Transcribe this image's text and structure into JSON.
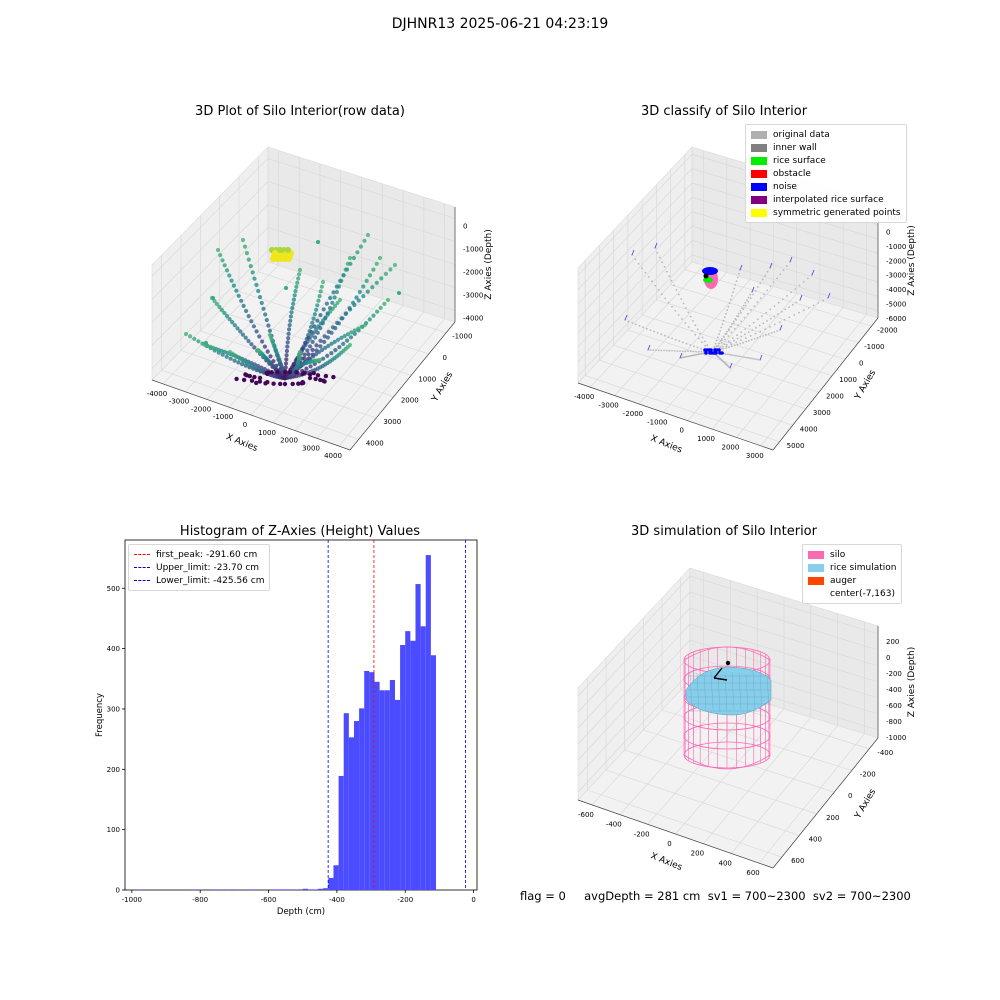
{
  "figure": {
    "suptitle": "DJHNR13 2025-06-21 04:23:19",
    "footer": "flag = 0     avgDepth = 281 cm  sv1 = 700~2300  sv2 = 700~2300"
  },
  "chart_data": [
    {
      "type": "scatter3d",
      "title": "3D Plot of Silo Interior(row data)",
      "xlabel": "X Axies",
      "ylabel": "Y Axies",
      "zlabel": "Z Axies (Depth)",
      "xticks": [
        "-4000",
        "-3000",
        "-2000",
        "-1000",
        "0",
        "1000",
        "2000",
        "3000",
        "4000"
      ],
      "yticks": [
        "-1000",
        "0",
        "1000",
        "2000",
        "3000",
        "4000"
      ],
      "zticks": [
        "-4000",
        "-3000",
        "-2000",
        "-1000",
        "0"
      ],
      "xlim": [
        -4200,
        4200
      ],
      "ylim": [
        -1200,
        4300
      ],
      "zlim": [
        -4300,
        300
      ],
      "colormap": "viridis",
      "grid": true
    },
    {
      "type": "scatter3d",
      "title": "3D classify of Silo Interior",
      "xlabel": "X Axies",
      "ylabel": "Y Axies",
      "zlabel": "Z Axies (Depth)",
      "xticks": [
        "-4000",
        "-3000",
        "-2000",
        "-1000",
        "0",
        "1000",
        "2000",
        "3000"
      ],
      "yticks": [
        "-2000",
        "-1000",
        "0",
        "1000",
        "2000",
        "3000",
        "4000",
        "5000"
      ],
      "zticks": [
        "-6000",
        "-5000",
        "-4000",
        "-3000",
        "-2000",
        "-1000",
        "0",
        "1000"
      ],
      "legend_position": "top-right",
      "legend": [
        {
          "label": "original data",
          "color": "#b0b0b0"
        },
        {
          "label": "inner wall",
          "color": "#808080"
        },
        {
          "label": "rice surface",
          "color": "#00ee00"
        },
        {
          "label": "obstacle",
          "color": "#ff0000"
        },
        {
          "label": "noise",
          "color": "#0000ff"
        },
        {
          "label": "interpolated rice surface",
          "color": "#800080"
        },
        {
          "label": "symmetric generated points",
          "color": "#ffff00"
        }
      ],
      "grid": true
    },
    {
      "type": "histogram",
      "title": "Histogram of Z-Axies (Height) Values",
      "xlabel": "Depth (cm)",
      "ylabel": "Frequency",
      "xlim": [
        -1020,
        10
      ],
      "ylim": [
        0,
        580
      ],
      "xticks": [
        -1000,
        -800,
        -600,
        -400,
        -200,
        0
      ],
      "yticks": [
        0,
        100,
        200,
        300,
        400,
        500
      ],
      "bar_color": "#4b4bff",
      "bins": [
        {
          "x0": -985,
          "x1": -970,
          "count": 1
        },
        {
          "x0": -830,
          "x1": -815,
          "count": 1
        },
        {
          "x0": -810,
          "x1": -795,
          "count": 1
        },
        {
          "x0": -765,
          "x1": -750,
          "count": 1
        },
        {
          "x0": -750,
          "x1": -735,
          "count": 1
        },
        {
          "x0": -725,
          "x1": -710,
          "count": 1
        },
        {
          "x0": -695,
          "x1": -680,
          "count": 1
        },
        {
          "x0": -660,
          "x1": -645,
          "count": 1
        },
        {
          "x0": -645,
          "x1": -630,
          "count": 1
        },
        {
          "x0": -590,
          "x1": -575,
          "count": 1
        },
        {
          "x0": -575,
          "x1": -560,
          "count": 1
        },
        {
          "x0": -560,
          "x1": -545,
          "count": 1
        },
        {
          "x0": -545,
          "x1": -530,
          "count": 1
        },
        {
          "x0": -530,
          "x1": -515,
          "count": 1
        },
        {
          "x0": -500,
          "x1": -485,
          "count": 2
        },
        {
          "x0": -485,
          "x1": -470,
          "count": 1
        },
        {
          "x0": -470,
          "x1": -455,
          "count": 1
        },
        {
          "x0": -455,
          "x1": -440,
          "count": 2
        },
        {
          "x0": -440,
          "x1": -425,
          "count": 3
        },
        {
          "x0": -425,
          "x1": -410,
          "count": 20
        },
        {
          "x0": -410,
          "x1": -395,
          "count": 41
        },
        {
          "x0": -395,
          "x1": -380,
          "count": 189
        },
        {
          "x0": -380,
          "x1": -365,
          "count": 293
        },
        {
          "x0": -365,
          "x1": -350,
          "count": 253
        },
        {
          "x0": -350,
          "x1": -335,
          "count": 280
        },
        {
          "x0": -335,
          "x1": -320,
          "count": 301
        },
        {
          "x0": -320,
          "x1": -305,
          "count": 363
        },
        {
          "x0": -305,
          "x1": -290,
          "count": 361
        },
        {
          "x0": -290,
          "x1": -275,
          "count": 345
        },
        {
          "x0": -275,
          "x1": -260,
          "count": 331
        },
        {
          "x0": -260,
          "x1": -245,
          "count": 331
        },
        {
          "x0": -245,
          "x1": -230,
          "count": 348
        },
        {
          "x0": -230,
          "x1": -215,
          "count": 315
        },
        {
          "x0": -215,
          "x1": -200,
          "count": 406
        },
        {
          "x0": -200,
          "x1": -185,
          "count": 429
        },
        {
          "x0": -185,
          "x1": -170,
          "count": 413
        },
        {
          "x0": -170,
          "x1": -155,
          "count": 507
        },
        {
          "x0": -155,
          "x1": -140,
          "count": 437
        },
        {
          "x0": -140,
          "x1": -125,
          "count": 555
        },
        {
          "x0": -125,
          "x1": -110,
          "count": 389
        }
      ],
      "lines": [
        {
          "label": "first_peak: -291.60 cm",
          "value": -291.6,
          "color": "#ff0000"
        },
        {
          "label": "Upper_limit: -23.70 cm",
          "value": -23.7,
          "color": "#0000cc"
        },
        {
          "label": "Lower_limit: -425.56 cm",
          "value": -425.56,
          "color": "#0000cc"
        }
      ],
      "legend_position": "top-left"
    },
    {
      "type": "surface3d",
      "title": "3D simulation of Silo Interior",
      "xlabel": "X Axies",
      "ylabel": "Y Axies",
      "zlabel": "Z Axies (Depth)",
      "xticks": [
        "-600",
        "-400",
        "-200",
        "0",
        "200",
        "400",
        "600"
      ],
      "yticks": [
        "-400",
        "-200",
        "0",
        "200",
        "400",
        "600"
      ],
      "zticks": [
        "-1000",
        "-800",
        "-600",
        "-400",
        "-200",
        "0",
        "200"
      ],
      "legend_position": "top-right",
      "legend": [
        {
          "label": "silo",
          "color": "#ff69b4"
        },
        {
          "label": "rice simulation",
          "color": "#87ceeb"
        },
        {
          "label": "auger",
          "color": "#ff4500"
        },
        {
          "label": "center(-7,163)",
          "color": "#ffffff"
        }
      ],
      "grid": true
    }
  ]
}
